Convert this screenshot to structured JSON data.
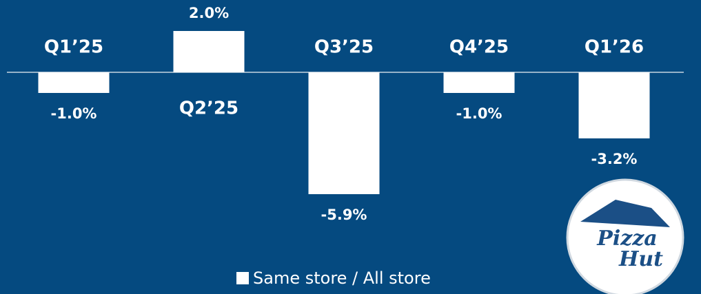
{
  "chart_data": {
    "type": "bar",
    "categories": [
      "Q1’25",
      "Q2’25",
      "Q3’25",
      "Q4’25",
      "Q1’26"
    ],
    "series": [
      {
        "name": "Same store / All store",
        "color": "#ffffff",
        "values": [
          -1.0,
          2.0,
          -5.9,
          -1.0,
          -3.2
        ],
        "value_labels": [
          "-1.0%",
          "2.0%",
          "-5.9%",
          "-1.0%",
          "-3.2%"
        ]
      }
    ],
    "ylim": [
      -7,
      3
    ],
    "logo_text": [
      "Pizza",
      "Hut"
    ]
  }
}
